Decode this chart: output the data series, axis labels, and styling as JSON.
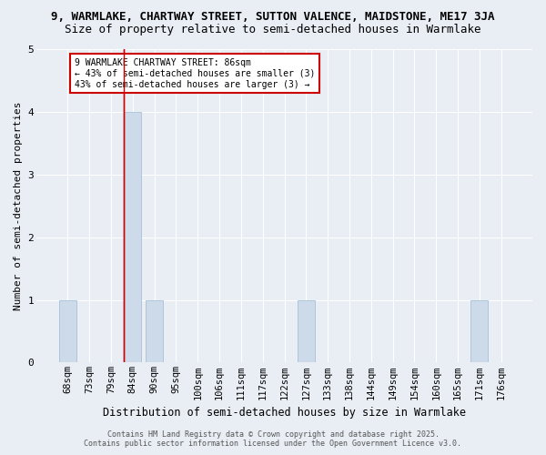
{
  "title_line1": "9, WARMLAKE, CHARTWAY STREET, SUTTON VALENCE, MAIDSTONE, ME17 3JA",
  "title_line2": "Size of property relative to semi-detached houses in Warmlake",
  "xlabel": "Distribution of semi-detached houses by size in Warmlake",
  "ylabel": "Number of semi-detached properties",
  "categories": [
    "68sqm",
    "73sqm",
    "79sqm",
    "84sqm",
    "90sqm",
    "95sqm",
    "100sqm",
    "106sqm",
    "111sqm",
    "117sqm",
    "122sqm",
    "127sqm",
    "133sqm",
    "138sqm",
    "144sqm",
    "149sqm",
    "154sqm",
    "160sqm",
    "165sqm",
    "171sqm",
    "176sqm"
  ],
  "values": [
    1,
    0,
    0,
    4,
    1,
    0,
    0,
    0,
    0,
    0,
    0,
    1,
    0,
    0,
    0,
    0,
    0,
    0,
    0,
    1,
    0
  ],
  "bar_color": "#ccdaea",
  "bar_edgecolor": "#a8c0d6",
  "subject_line_color": "#cc0000",
  "subject_bar_index": 3,
  "ylim": [
    0,
    5
  ],
  "yticks": [
    0,
    1,
    2,
    3,
    4,
    5
  ],
  "annotation_text": "9 WARMLAKE CHARTWAY STREET: 86sqm\n← 43% of semi-detached houses are smaller (3)\n43% of semi-detached houses are larger (3) →",
  "annotation_box_facecolor": "#ffffff",
  "annotation_box_edgecolor": "#cc0000",
  "footer_line1": "Contains HM Land Registry data © Crown copyright and database right 2025.",
  "footer_line2": "Contains public sector information licensed under the Open Government Licence v3.0.",
  "bg_color": "#e8eef4",
  "grid_color": "#ffffff",
  "title_fontsize": 9,
  "subtitle_fontsize": 9,
  "tick_fontsize": 7.5,
  "ylabel_fontsize": 8,
  "xlabel_fontsize": 8.5,
  "annotation_fontsize": 7,
  "footer_fontsize": 6
}
